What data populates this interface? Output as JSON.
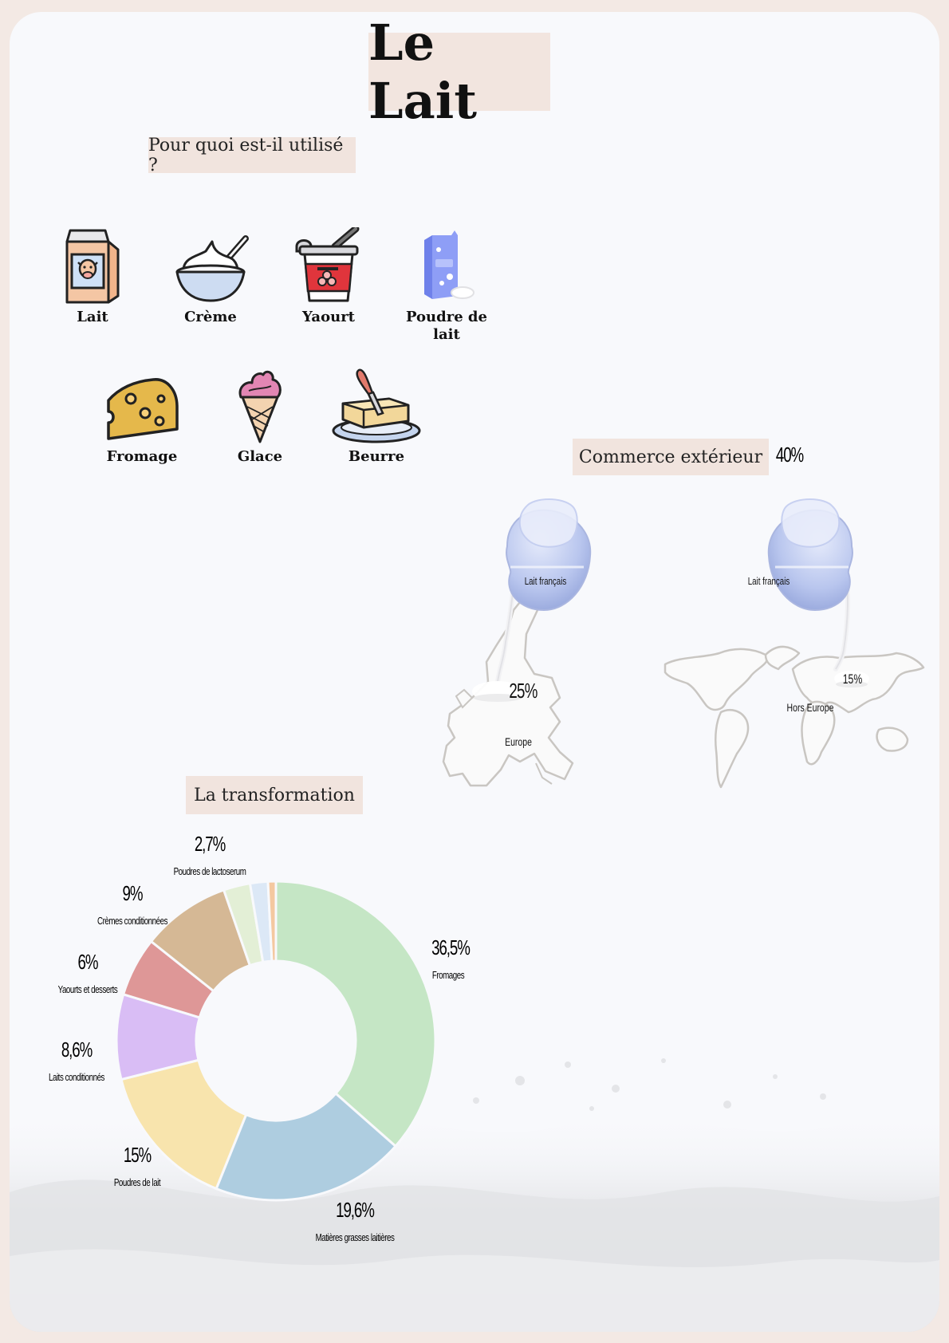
{
  "title": "Le Lait",
  "uses": {
    "heading": "Pour quoi est-il utilisé ?",
    "items": [
      {
        "label": "Lait",
        "icon": "milk-carton-icon"
      },
      {
        "label": "Crème",
        "icon": "cream-bowl-icon"
      },
      {
        "label": "Yaourt",
        "icon": "yogurt-cup-icon"
      },
      {
        "label": "Poudre de lait",
        "icon": "milk-powder-bag-icon"
      },
      {
        "label": "Fromage",
        "icon": "cheese-icon"
      },
      {
        "label": "Glace",
        "icon": "ice-cream-cone-icon"
      },
      {
        "label": "Beurre",
        "icon": "butter-dish-icon"
      }
    ]
  },
  "trade": {
    "heading": "Commerce extérieur",
    "total": "40%",
    "europe": {
      "pitcher_label": "Lait français",
      "value": "25%",
      "region": "Europe"
    },
    "world": {
      "pitcher_label": "Lait français",
      "value": "15%",
      "region": "Hors Europe"
    }
  },
  "transformation": {
    "heading": "La transformation"
  },
  "chart_data": {
    "type": "pie",
    "donut": true,
    "slices": [
      {
        "label": "Fromages",
        "value": 36.5,
        "display": "36,5%",
        "color": "#c5e6c5"
      },
      {
        "label": "Matières grasses laitières",
        "value": 19.6,
        "display": "19,6%",
        "color": "#aecde0"
      },
      {
        "label": "Poudres de lait",
        "value": 15,
        "display": "15%",
        "color": "#f8e4ad"
      },
      {
        "label": "Laits conditionnés",
        "value": 8.6,
        "display": "8,6%",
        "color": "#d9bdf5"
      },
      {
        "label": "Yaourts et desserts",
        "value": 6,
        "display": "6%",
        "color": "#de9797"
      },
      {
        "label": "Crèmes conditionnées",
        "value": 9,
        "display": "9%",
        "color": "#d5b895"
      },
      {
        "label": "Poudres de lactoserum",
        "value": 2.7,
        "display": "2,7%",
        "color": "#e3efd6"
      },
      {
        "label": "",
        "value": 1.8,
        "display": "",
        "color": "#dce8f6"
      },
      {
        "label": "",
        "value": 0.8,
        "display": "",
        "color": "#f4c8a0"
      }
    ]
  }
}
